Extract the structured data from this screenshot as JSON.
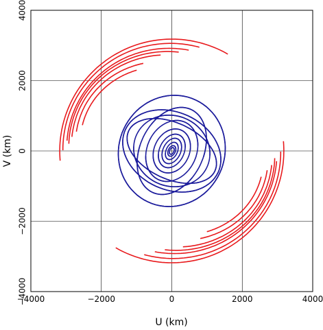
{
  "chart_data": {
    "type": "scatter",
    "title": "",
    "xlabel": "U (km)",
    "ylabel": "V (km)",
    "xlim": [
      -4000,
      4000
    ],
    "ylim": [
      -4000,
      4000
    ],
    "grid": true,
    "x_ticks": [
      -4000,
      -2000,
      0,
      2000,
      4000
    ],
    "y_ticks": [
      -4000,
      -2000,
      0,
      2000,
      4000
    ],
    "x_tick_labels": [
      "−4000",
      "−2000",
      "0",
      "2000",
      "4000"
    ],
    "y_tick_labels": [
      "−4000",
      "−2000",
      "0",
      "2000",
      "4000"
    ],
    "colors": {
      "long_baselines": "#e8191c",
      "short_baselines": "#1c1c9c"
    },
    "series": [
      {
        "color_key": "long_baselines",
        "tracks": [
          {
            "a": 3180,
            "b": 3180,
            "t0": -95,
            "t1": 30
          },
          {
            "a": 3100,
            "b": 3050,
            "t0": -80,
            "t1": 25
          },
          {
            "a": 3000,
            "b": 2900,
            "t0": -75,
            "t1": 20
          },
          {
            "a": 2950,
            "b": 2800,
            "t0": -70,
            "t1": 22
          },
          {
            "a": 2880,
            "b": 2700,
            "t0": -60,
            "t1": 18
          },
          {
            "a": 2780,
            "b": 2500,
            "t0": -50,
            "t1": 15
          },
          {
            "a": 2650,
            "b": 2350,
            "t0": -45,
            "t1": 10
          }
        ]
      },
      {
        "color_key": "short_baselines",
        "tracks": [
          {
            "a": 1500,
            "b": 1600,
            "t0": 0,
            "t1": 360
          },
          {
            "a": 1450,
            "b": 1100,
            "t0": 0,
            "t1": 360
          },
          {
            "a": 1350,
            "b": 800,
            "t0": 0,
            "t1": 360
          },
          {
            "a": 1100,
            "b": 1000,
            "t0": 20,
            "t1": 330
          },
          {
            "a": 900,
            "b": 1300,
            "t0": 10,
            "t1": 340
          },
          {
            "a": 700,
            "b": 900,
            "t0": 30,
            "t1": 300
          },
          {
            "a": 500,
            "b": 650,
            "t0": 20,
            "t1": 320
          },
          {
            "a": 350,
            "b": 500,
            "t0": 30,
            "t1": 300
          },
          {
            "a": 250,
            "b": 380,
            "t0": 20,
            "t1": 300
          },
          {
            "a": 160,
            "b": 260,
            "t0": 30,
            "t1": 300
          },
          {
            "a": 100,
            "b": 160,
            "t0": 30,
            "t1": 300
          },
          {
            "a": 60,
            "b": 100,
            "t0": 40,
            "t1": 300
          }
        ]
      }
    ]
  }
}
